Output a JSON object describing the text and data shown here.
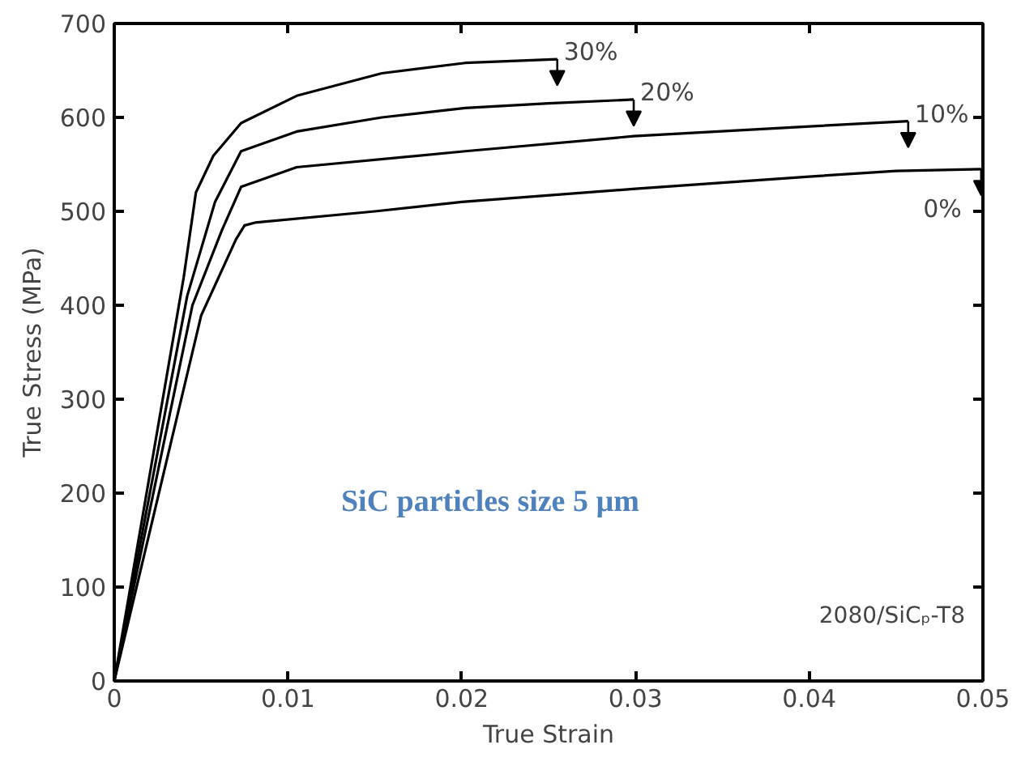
{
  "chart_data": {
    "type": "line",
    "xlabel": "True Strain",
    "ylabel": "True Stress (MPa)",
    "xlim": [
      0,
      0.05
    ],
    "ylim": [
      0,
      700
    ],
    "xticks": [
      0,
      0.01,
      0.02,
      0.03,
      0.04,
      0.05
    ],
    "yticks": [
      0,
      100,
      200,
      300,
      400,
      500,
      600,
      700
    ],
    "grid": false,
    "marker": "none",
    "line_style": "solid",
    "series": [
      {
        "color": "#000000",
        "x": [
          0,
          0.005,
          0.007,
          0.0075,
          0.0081,
          0.015,
          0.02,
          0.03,
          0.04,
          0.045,
          0.0499
        ],
        "values": [
          0,
          389,
          470,
          485,
          488,
          500,
          510,
          524,
          537,
          543,
          545
        ]
      },
      {
        "color": "#000000",
        "x": [
          0,
          0.0045,
          0.0062,
          0.0073,
          0.0105,
          0.0202,
          0.0299,
          0.0396,
          0.0457
        ],
        "values": [
          0,
          400,
          480,
          526,
          547,
          564,
          580,
          590,
          596
        ]
      },
      {
        "color": "#000000",
        "x": [
          0,
          0.0042,
          0.0058,
          0.0073,
          0.0105,
          0.0154,
          0.0202,
          0.025,
          0.0299
        ],
        "values": [
          0,
          410,
          510,
          564,
          585,
          600,
          610,
          615,
          619
        ]
      },
      {
        "color": "#000000",
        "x": [
          0,
          0.004,
          0.0047,
          0.0057,
          0.0073,
          0.0105,
          0.0154,
          0.0202,
          0.0255
        ],
        "values": [
          0,
          430,
          520,
          559,
          594,
          623,
          647,
          658,
          662
        ]
      }
    ],
    "annotations": [
      {
        "text": "30%",
        "x": 0.0255,
        "y": 662
      },
      {
        "text": "20%",
        "x": 0.0299,
        "y": 619
      },
      {
        "text": "10%",
        "x": 0.0457,
        "y": 596
      },
      {
        "text": "0%",
        "x": 0.0499,
        "y": 545
      },
      "SiC particles size 5 µm",
      "2080/SiCₚ-T8"
    ]
  }
}
